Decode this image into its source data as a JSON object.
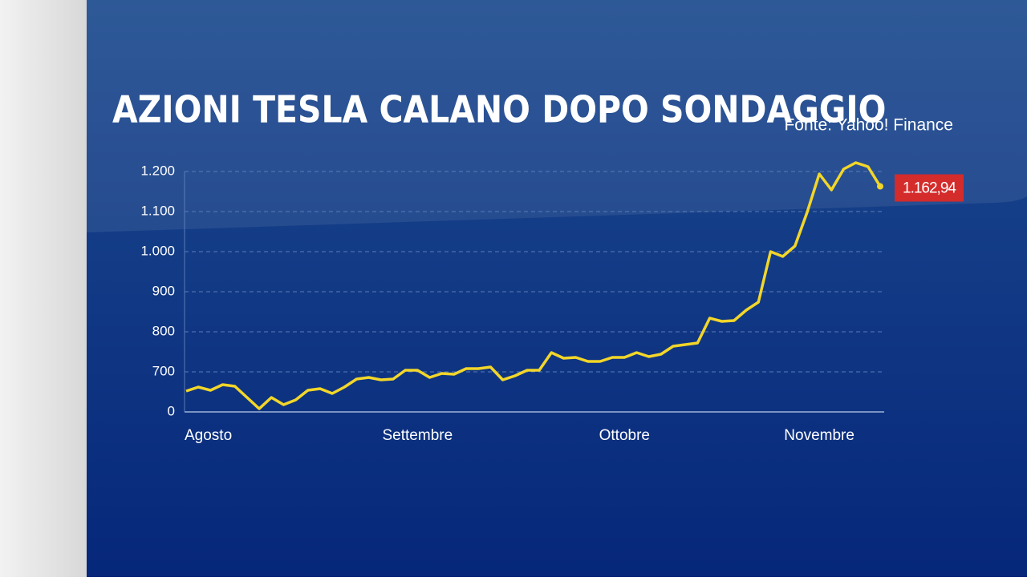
{
  "chart_data": {
    "type": "line",
    "title": "AZIONI TESLA CALANO DOPO SONDAGGIO",
    "source": "Fonte: Yahoo! Finance",
    "categories": [
      "Agosto",
      null,
      null,
      null,
      null,
      null,
      null,
      null,
      null,
      null,
      null,
      null,
      null,
      null,
      null,
      null,
      null,
      null,
      null,
      "Settembre",
      null,
      null,
      null,
      null,
      null,
      null,
      null,
      null,
      null,
      null,
      null,
      null,
      null,
      null,
      null,
      null,
      "Ottobre",
      null,
      null,
      null,
      null,
      null,
      null,
      null,
      null,
      null,
      null,
      null,
      null,
      null,
      null,
      null,
      "Novembre",
      null,
      null,
      null,
      null,
      null
    ],
    "values": [
      364,
      434,
      378,
      476,
      448,
      252,
      56,
      252,
      126,
      210,
      378,
      406,
      322,
      434,
      574,
      602,
      560,
      574,
      704,
      704,
      602,
      672,
      658,
      708,
      708,
      712,
      560,
      630,
      704,
      704,
      748,
      734,
      736,
      726,
      726,
      736,
      736,
      748,
      738,
      744,
      764,
      768,
      772,
      834,
      826,
      828,
      854,
      874,
      1000,
      988,
      1014,
      1098,
      1194,
      1154,
      1206,
      1222,
      1212,
      1162.94
    ],
    "value_labels": [
      null,
      null,
      null,
      null,
      null,
      null,
      null,
      null,
      null,
      null,
      null,
      null,
      null,
      null,
      null,
      null,
      null,
      null,
      null,
      null,
      null,
      null,
      null,
      null,
      null,
      null,
      null,
      null,
      null,
      null,
      null,
      null,
      null,
      null,
      null,
      null,
      null,
      null,
      null,
      null,
      null,
      null,
      null,
      null,
      null,
      null,
      null,
      null,
      null,
      null,
      null,
      null,
      null,
      null,
      null,
      null,
      null,
      "1.162,94"
    ],
    "color": "#f2d629",
    "ylim": [
      0,
      1200
    ],
    "yticks": [
      0,
      700,
      800,
      900,
      {
        "value": 1000,
        "label": "1.000"
      },
      {
        "value": 1100,
        "label": "1.100"
      },
      {
        "value": 1200,
        "label": "1.200"
      }
    ],
    "grid": true
  }
}
